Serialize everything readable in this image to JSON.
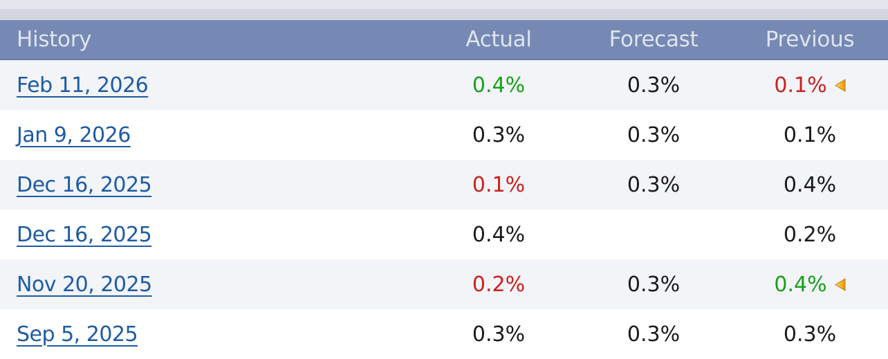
{
  "header": {
    "columns": [
      "History",
      "Actual",
      "Forecast",
      "Previous"
    ]
  },
  "rows": [
    {
      "date": "Feb 11, 2026",
      "actual": "0.4%",
      "actual_color": "green",
      "forecast": "0.3%",
      "forecast_color": "black",
      "previous": "0.1%",
      "previous_color": "red",
      "previous_revised": true
    },
    {
      "date": "Jan 9, 2026",
      "actual": "0.3%",
      "actual_color": "black",
      "forecast": "0.3%",
      "forecast_color": "black",
      "previous": "0.1%",
      "previous_color": "black",
      "previous_revised": false
    },
    {
      "date": "Dec 16, 2025",
      "actual": "0.1%",
      "actual_color": "red",
      "forecast": "0.3%",
      "forecast_color": "black",
      "previous": "0.4%",
      "previous_color": "black",
      "previous_revised": false
    },
    {
      "date": "Dec 16, 2025",
      "actual": "0.4%",
      "actual_color": "black",
      "forecast": "",
      "forecast_color": "black",
      "previous": "0.2%",
      "previous_color": "black",
      "previous_revised": false
    },
    {
      "date": "Nov 20, 2025",
      "actual": "0.2%",
      "actual_color": "red",
      "forecast": "0.3%",
      "forecast_color": "black",
      "previous": "0.4%",
      "previous_color": "green",
      "previous_revised": true
    },
    {
      "date": "Sep 5, 2025",
      "actual": "0.3%",
      "actual_color": "black",
      "forecast": "0.3%",
      "forecast_color": "black",
      "previous": "0.3%",
      "previous_color": "black",
      "previous_revised": false
    }
  ],
  "icons": {
    "revision": "revision-cone-icon"
  },
  "colors": {
    "strip_top": "#e4e6ee",
    "strip_bottom": "#d3d6e0",
    "header_bg": "#7689b4",
    "header_text": "#dfe4ee",
    "header_border_bottom": "#6b7aa3",
    "row_bg": "#ffffff",
    "row_alt_bg": "#f2f4f8",
    "link": "#1e5ba3",
    "value": "#1a1a1a",
    "green": "#17a017",
    "red": "#c9211e",
    "icon_light": "#ffdf7e",
    "icon_dark": "#e2950f",
    "icon_border": "#c07f08"
  }
}
